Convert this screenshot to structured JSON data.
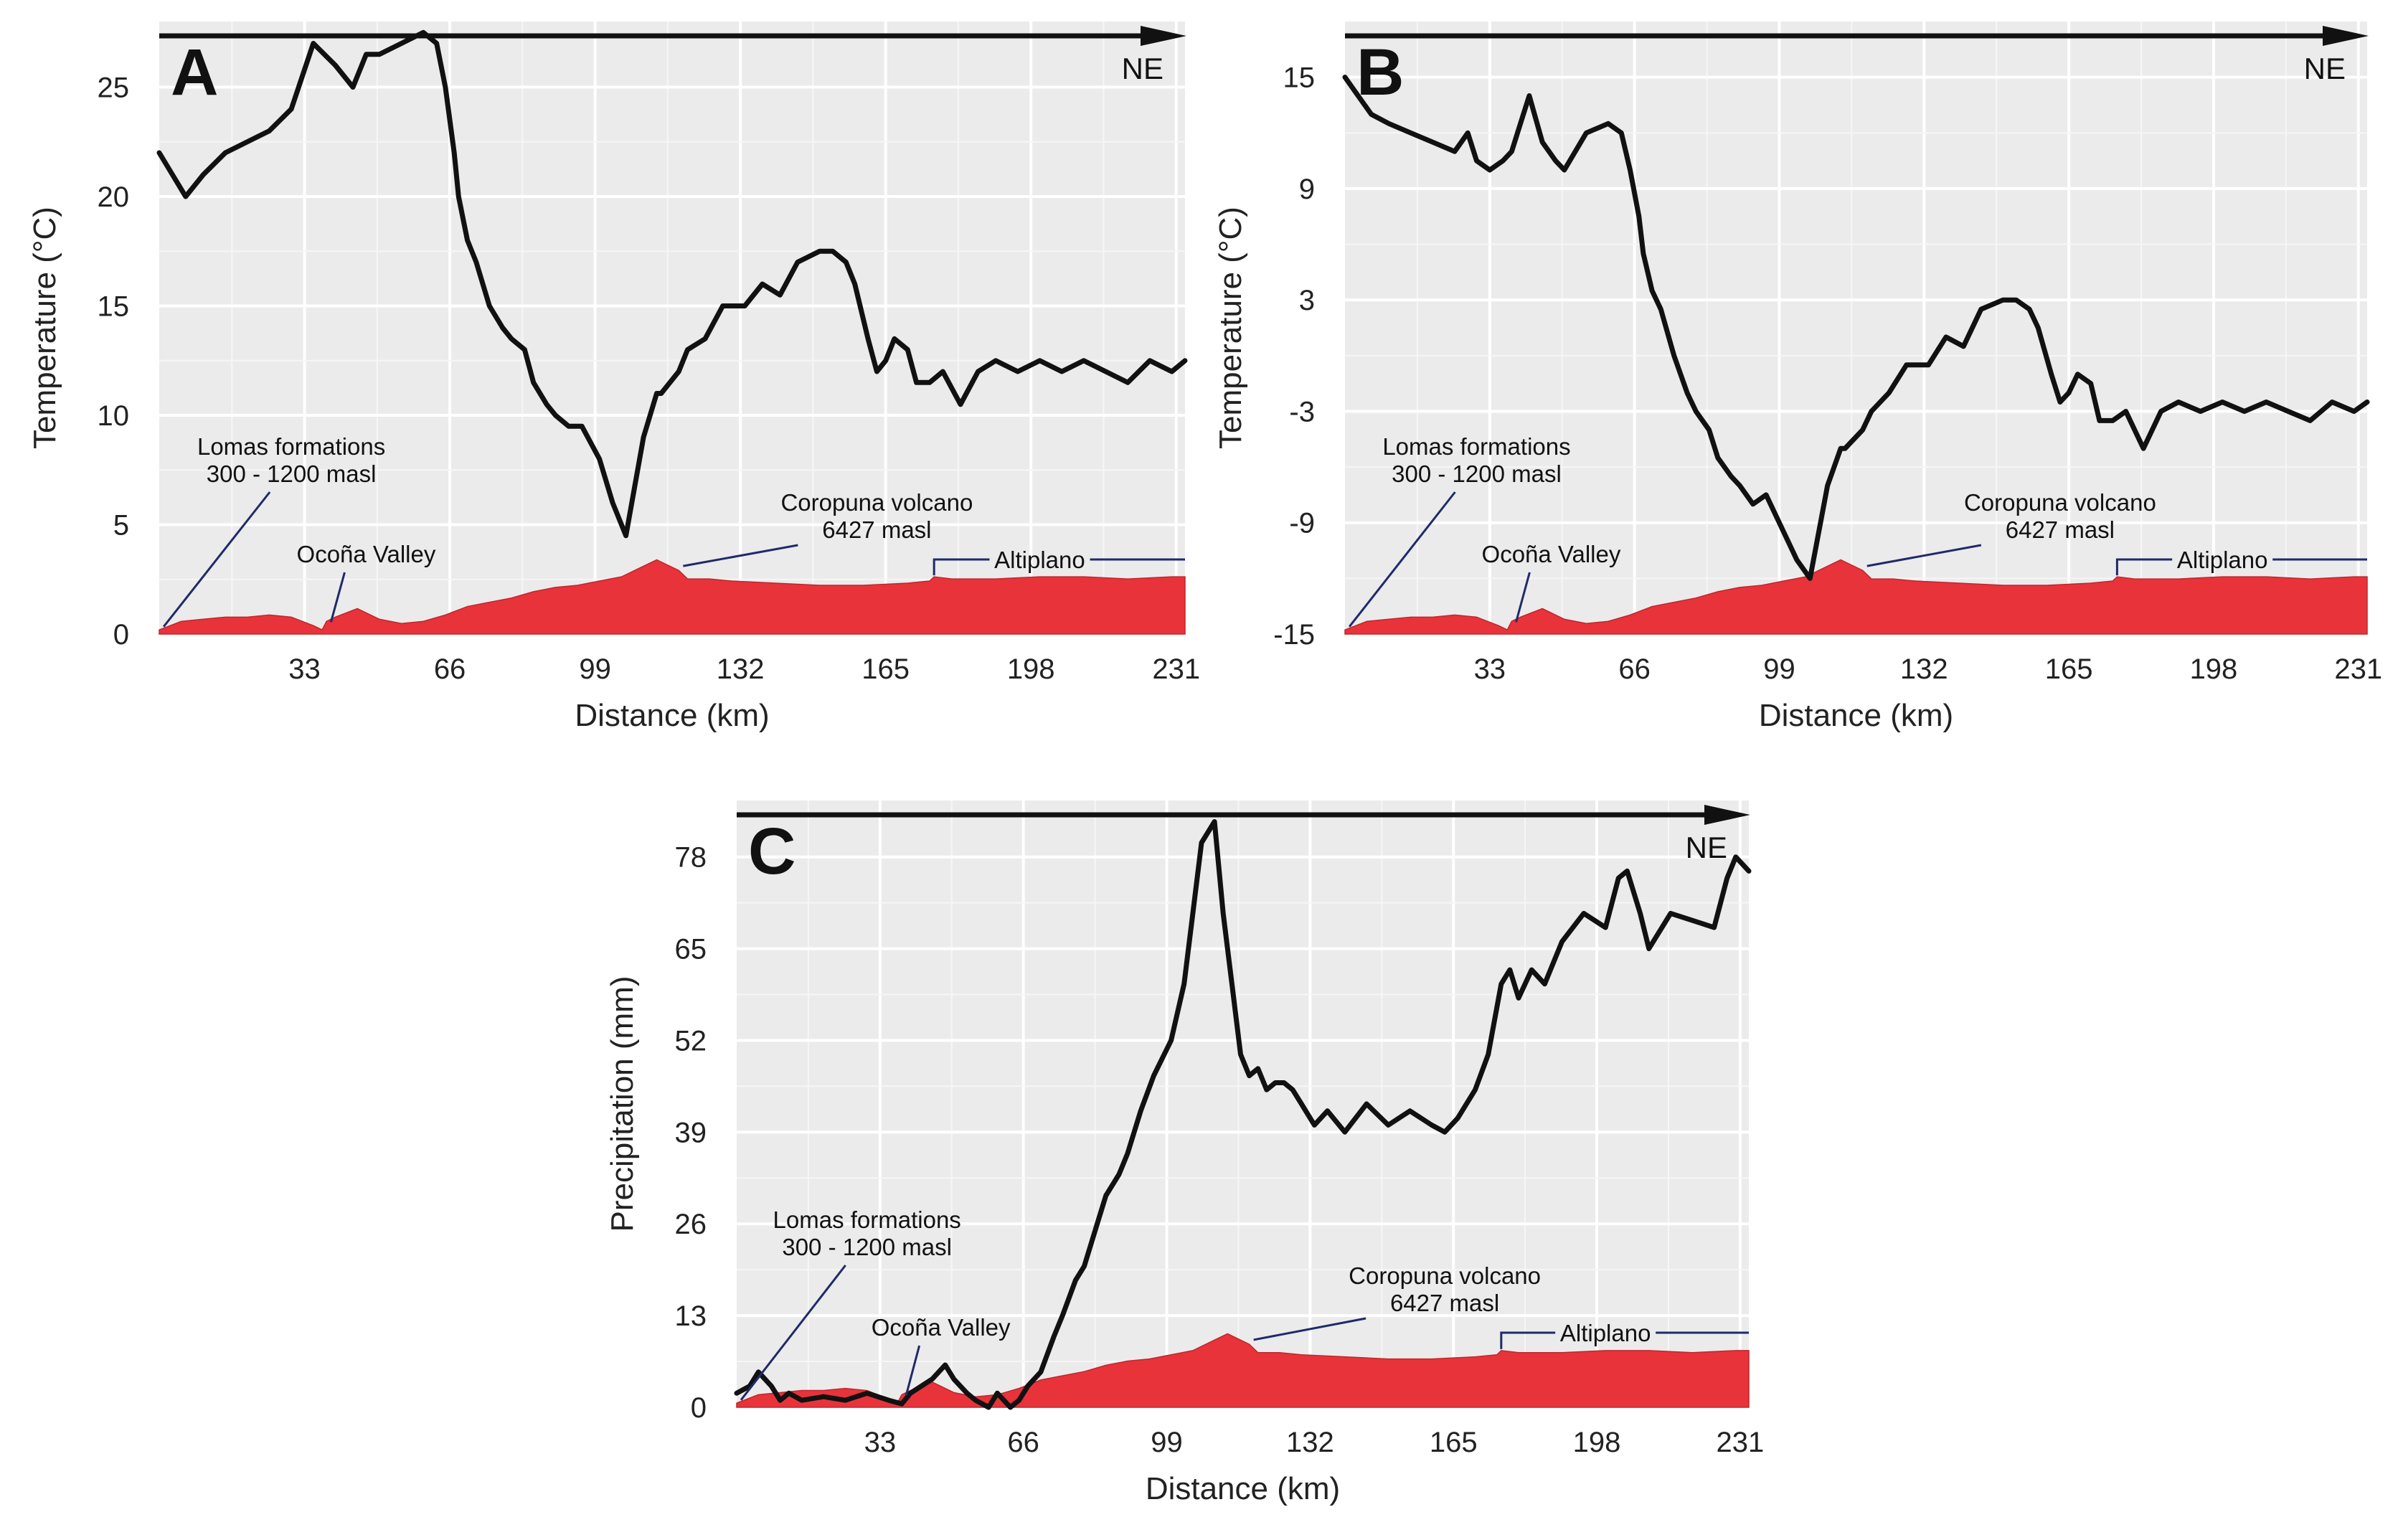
{
  "chart_data": [
    {
      "type": "line",
      "panel": "A",
      "direction_label": "NE",
      "xlabel": "Distance (km)",
      "ylabel": "Temperature (°C)",
      "xlim": [
        0,
        233
      ],
      "ylim": [
        0,
        28
      ],
      "xticks": [
        33,
        66,
        99,
        132,
        165,
        198,
        231
      ],
      "yticks": [
        0,
        5,
        10,
        15,
        20,
        25
      ],
      "grid": true,
      "series": [
        {
          "role": "value",
          "color": "#111111",
          "x": [
            0,
            3,
            6,
            10,
            15,
            20,
            25,
            30,
            35,
            40,
            44,
            47,
            50,
            55,
            60,
            63,
            65,
            67,
            68,
            70,
            72,
            75,
            78,
            80,
            83,
            85,
            88,
            90,
            93,
            96,
            100,
            103,
            106,
            110,
            113,
            114,
            116,
            118,
            120,
            124,
            128,
            133,
            137,
            141,
            145,
            150,
            153,
            156,
            158,
            161,
            163,
            165,
            167,
            170,
            172,
            175,
            178,
            182,
            186,
            190,
            195,
            200,
            205,
            210,
            215,
            220,
            225,
            230,
            233
          ],
          "y": [
            22,
            21,
            20,
            21,
            22,
            22.5,
            23,
            24,
            27,
            26,
            25,
            26.5,
            26.5,
            27,
            27.5,
            27,
            25,
            22,
            20,
            18,
            17,
            15,
            14,
            13.5,
            13,
            11.5,
            10.5,
            10,
            9.5,
            9.5,
            8,
            6,
            4.5,
            9,
            11,
            11,
            11.5,
            12,
            13,
            13.5,
            15,
            15,
            16,
            15.5,
            17,
            17.5,
            17.5,
            17,
            16,
            13.5,
            12,
            12.5,
            13.5,
            13,
            11.5,
            11.5,
            12,
            10.5,
            12,
            12.5,
            12,
            12.5,
            12,
            12.5,
            12,
            11.5,
            12.5,
            12,
            12.5
          ]
        },
        {
          "role": "terrain",
          "color": "#e8333a",
          "x": [
            0,
            5,
            10,
            15,
            20,
            25,
            30,
            35,
            37,
            38,
            40,
            45,
            50,
            55,
            60,
            65,
            70,
            75,
            80,
            85,
            90,
            95,
            100,
            105,
            110,
            113,
            115,
            118,
            120,
            125,
            130,
            140,
            150,
            160,
            170,
            175,
            176,
            180,
            190,
            200,
            210,
            220,
            230,
            233
          ],
          "y": [
            0.2,
            0.6,
            0.7,
            0.8,
            0.8,
            0.9,
            0.8,
            0.4,
            0.2,
            0.6,
            0.8,
            1.2,
            0.7,
            0.5,
            0.6,
            0.9,
            1.3,
            1.5,
            1.7,
            2.0,
            2.2,
            2.3,
            2.5,
            2.7,
            3.2,
            3.5,
            3.3,
            3.0,
            2.6,
            2.6,
            2.5,
            2.4,
            2.3,
            2.3,
            2.4,
            2.5,
            2.7,
            2.6,
            2.6,
            2.7,
            2.7,
            2.6,
            2.7,
            2.7
          ]
        }
      ],
      "annotations": [
        {
          "text": [
            "Lomas formations",
            "300 - 1200 masl"
          ]
        },
        {
          "text": [
            "Ocoña Valley"
          ]
        },
        {
          "text": [
            "Coropuna volcano",
            "6427 masl"
          ]
        },
        {
          "text": [
            "Altiplano"
          ]
        }
      ]
    },
    {
      "type": "line",
      "panel": "B",
      "direction_label": "NE",
      "xlabel": "Distance (km)",
      "ylabel": "Temperature (°C)",
      "xlim": [
        0,
        233
      ],
      "ylim": [
        -15,
        18
      ],
      "xticks": [
        33,
        66,
        99,
        132,
        165,
        198,
        231
      ],
      "yticks": [
        -15,
        -9,
        -3,
        3,
        9,
        15
      ],
      "grid": true,
      "series": [
        {
          "role": "value",
          "color": "#111111",
          "x": [
            0,
            3,
            6,
            10,
            15,
            20,
            25,
            28,
            30,
            33,
            36,
            38,
            40,
            42,
            45,
            48,
            50,
            55,
            60,
            63,
            65,
            67,
            68,
            70,
            72,
            75,
            78,
            80,
            83,
            85,
            88,
            90,
            93,
            96,
            100,
            103,
            106,
            110,
            113,
            114,
            116,
            118,
            120,
            124,
            128,
            133,
            137,
            141,
            145,
            150,
            153,
            156,
            158,
            161,
            163,
            165,
            167,
            170,
            172,
            175,
            178,
            182,
            186,
            190,
            195,
            200,
            205,
            210,
            215,
            220,
            225,
            230,
            233
          ],
          "y": [
            15,
            14,
            13,
            12.5,
            12,
            11.5,
            11,
            12,
            10.5,
            10,
            10.5,
            11,
            12.5,
            14,
            11.5,
            10.5,
            10,
            12,
            12.5,
            12,
            10,
            7.5,
            5.5,
            3.5,
            2.5,
            0,
            -2,
            -3,
            -4,
            -5.5,
            -6.5,
            -7,
            -8,
            -7.5,
            -9.5,
            -11,
            -12,
            -7,
            -5,
            -5,
            -4.5,
            -4,
            -3,
            -2,
            -0.5,
            -0.5,
            1,
            0.5,
            2.5,
            3,
            3,
            2.5,
            1.5,
            -1,
            -2.5,
            -2,
            -1,
            -1.5,
            -3.5,
            -3.5,
            -3,
            -5,
            -3,
            -2.5,
            -3,
            -2.5,
            -3,
            -2.5,
            -3,
            -3.5,
            -2.5,
            -3,
            -2.5
          ]
        },
        {
          "role": "terrain",
          "color": "#e8333a",
          "x": [
            0,
            5,
            10,
            15,
            20,
            25,
            30,
            35,
            37,
            38,
            40,
            45,
            50,
            55,
            60,
            65,
            70,
            75,
            80,
            85,
            90,
            95,
            100,
            105,
            110,
            113,
            115,
            118,
            120,
            125,
            130,
            140,
            150,
            160,
            170,
            175,
            176,
            180,
            190,
            200,
            210,
            220,
            230,
            233
          ],
          "y": [
            0.2,
            0.6,
            0.7,
            0.8,
            0.8,
            0.9,
            0.8,
            0.4,
            0.2,
            0.6,
            0.8,
            1.2,
            0.7,
            0.5,
            0.6,
            0.9,
            1.3,
            1.5,
            1.7,
            2.0,
            2.2,
            2.3,
            2.5,
            2.7,
            3.2,
            3.5,
            3.3,
            3.0,
            2.6,
            2.6,
            2.5,
            2.4,
            2.3,
            2.3,
            2.4,
            2.5,
            2.7,
            2.6,
            2.6,
            2.7,
            2.7,
            2.6,
            2.7,
            2.7
          ]
        }
      ],
      "annotations": [
        {
          "text": [
            "Lomas formations",
            "300 - 1200 masl"
          ]
        },
        {
          "text": [
            "Ocoña Valley"
          ]
        },
        {
          "text": [
            "Coropuna volcano",
            "6427 masl"
          ]
        },
        {
          "text": [
            "Altiplano"
          ]
        }
      ]
    },
    {
      "type": "line",
      "panel": "C",
      "direction_label": "NE",
      "xlabel": "Distance (km)",
      "ylabel": "Precipitation (mm)",
      "xlim": [
        0,
        233
      ],
      "ylim": [
        0,
        86
      ],
      "xticks": [
        33,
        66,
        99,
        132,
        165,
        198,
        231
      ],
      "yticks": [
        0,
        13,
        26,
        39,
        52,
        65,
        78
      ],
      "grid": true,
      "series": [
        {
          "role": "value",
          "color": "#111111",
          "x": [
            0,
            3,
            5,
            8,
            10,
            12,
            15,
            20,
            25,
            30,
            35,
            38,
            40,
            45,
            48,
            50,
            53,
            55,
            58,
            60,
            63,
            65,
            67,
            70,
            73,
            75,
            78,
            80,
            83,
            85,
            88,
            90,
            93,
            96,
            100,
            103,
            105,
            107,
            110,
            112,
            114,
            116,
            118,
            120,
            122,
            124,
            126,
            128,
            130,
            133,
            136,
            140,
            145,
            150,
            155,
            160,
            163,
            166,
            170,
            173,
            176,
            178,
            180,
            183,
            186,
            190,
            195,
            200,
            203,
            205,
            208,
            210,
            215,
            220,
            225,
            228,
            230,
            233
          ],
          "y": [
            2,
            3,
            5,
            3,
            1,
            2,
            1,
            1.5,
            1,
            2,
            1,
            0.5,
            2,
            4,
            6,
            4,
            2,
            1,
            0,
            2,
            0,
            1,
            3,
            5,
            10,
            13,
            18,
            20,
            26,
            30,
            33,
            36,
            42,
            47,
            52,
            60,
            70,
            80,
            83,
            70,
            60,
            50,
            47,
            48,
            45,
            46,
            46,
            45,
            43,
            40,
            42,
            39,
            43,
            40,
            42,
            40,
            39,
            41,
            45,
            50,
            60,
            62,
            58,
            62,
            60,
            66,
            70,
            68,
            75,
            76,
            70,
            65,
            70,
            69,
            68,
            75,
            78,
            76
          ]
        },
        {
          "role": "terrain",
          "color": "#e8333a",
          "x": [
            0,
            5,
            10,
            15,
            20,
            25,
            30,
            35,
            37,
            38,
            40,
            45,
            50,
            55,
            60,
            65,
            70,
            75,
            80,
            85,
            90,
            95,
            100,
            105,
            110,
            113,
            115,
            118,
            120,
            125,
            130,
            140,
            150,
            160,
            170,
            175,
            176,
            180,
            190,
            200,
            210,
            220,
            230,
            233
          ],
          "y": [
            0.2,
            0.6,
            0.7,
            0.8,
            0.8,
            0.9,
            0.8,
            0.4,
            0.2,
            0.6,
            0.8,
            1.2,
            0.7,
            0.5,
            0.6,
            0.9,
            1.3,
            1.5,
            1.7,
            2.0,
            2.2,
            2.3,
            2.5,
            2.7,
            3.2,
            3.5,
            3.3,
            3.0,
            2.6,
            2.6,
            2.5,
            2.4,
            2.3,
            2.3,
            2.4,
            2.5,
            2.7,
            2.6,
            2.6,
            2.7,
            2.7,
            2.6,
            2.7,
            2.7
          ]
        }
      ],
      "annotations": [
        {
          "text": [
            "Lomas formations",
            "300 - 1200 masl"
          ]
        },
        {
          "text": [
            "Ocoña Valley"
          ]
        },
        {
          "text": [
            "Coropuna volcano",
            "6427 masl"
          ]
        },
        {
          "text": [
            "Altiplano"
          ]
        }
      ]
    }
  ]
}
